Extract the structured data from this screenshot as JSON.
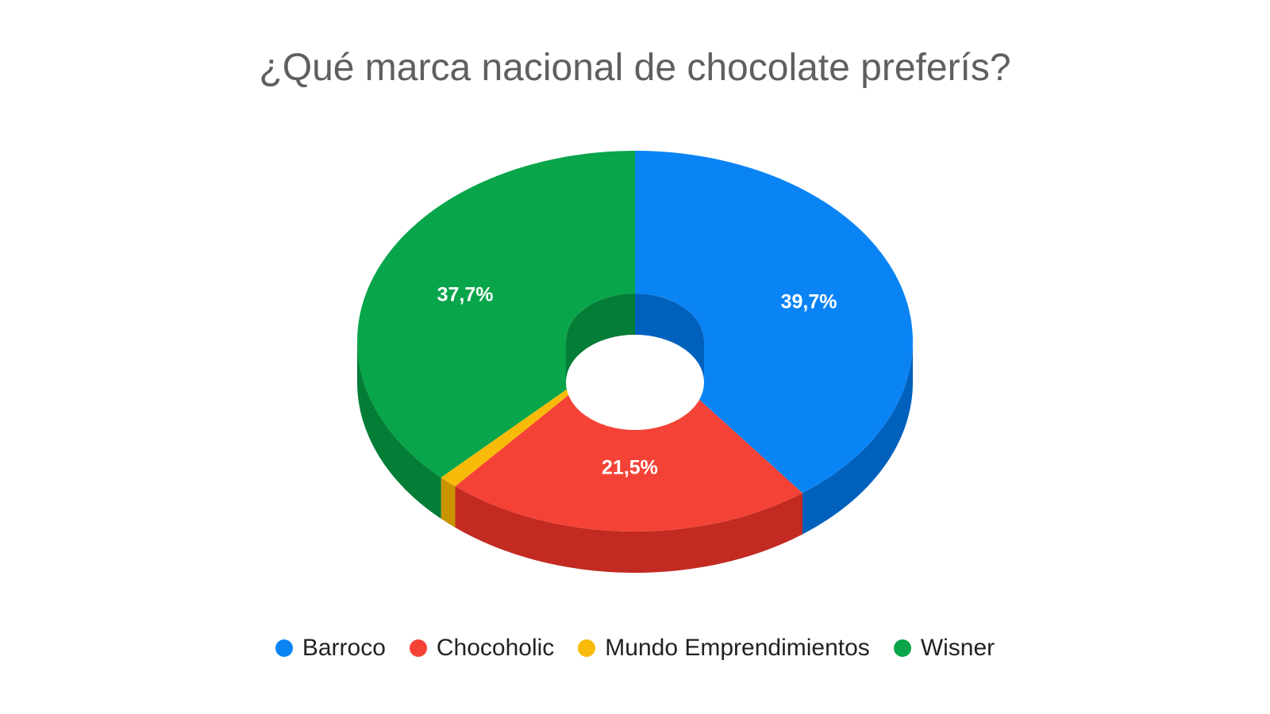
{
  "chart_data": {
    "type": "pie",
    "title": "¿Qué marca nacional de chocolate preferís?",
    "donut": true,
    "three_d": true,
    "legend_position": "bottom",
    "slices": [
      {
        "name": "Barroco",
        "value": 39.7,
        "label": "39,7%",
        "color": "#0a84f5",
        "side_color": "#0061bd"
      },
      {
        "name": "Chocoholic",
        "value": 21.5,
        "label": "21,5%",
        "color": "#f44336",
        "side_color": "#c22a22"
      },
      {
        "name": "Mundo Emprendimientos",
        "value": 1.1,
        "label": "",
        "color": "#f9bb09",
        "side_color": "#c99400"
      },
      {
        "name": "Wisner",
        "value": 37.7,
        "label": "37,7%",
        "color": "#08a54a",
        "side_color": "#047d37"
      }
    ]
  }
}
